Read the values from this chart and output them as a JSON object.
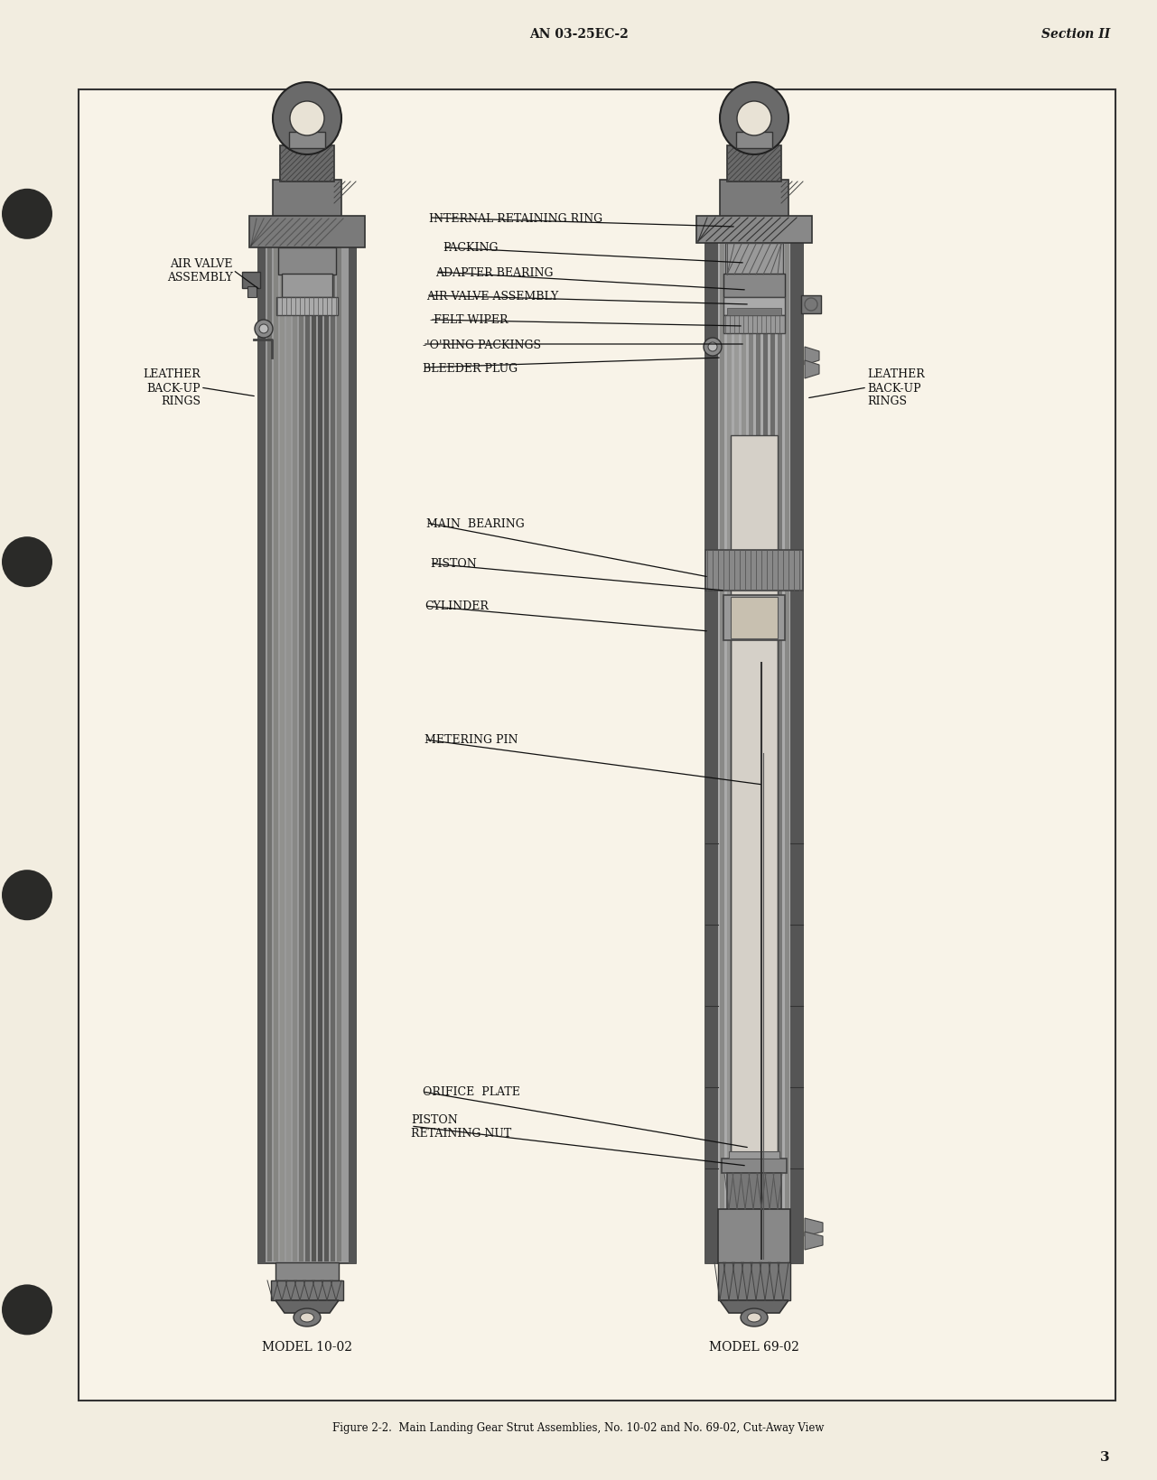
{
  "page_background": "#f2ede0",
  "header_left": "AN 03-25EC-2",
  "header_right": "Section II",
  "page_number": "3",
  "figure_caption": "Figure 2-2.  Main Landing Gear Strut Assemblies, No. 10-02 and No. 69-02, Cut-Away View",
  "model_left": "MODEL 10-02",
  "model_right": "MODEL 69-02",
  "text_color": "#1a1a1a",
  "box_color": "#222222",
  "strut_gray_dark": "#4a4a4a",
  "strut_gray_mid": "#787878",
  "strut_gray_light": "#b8b8b8",
  "strut_gray_lighter": "#d0d0d0",
  "label_fontsize": 9,
  "caption_fontsize": 8.5
}
